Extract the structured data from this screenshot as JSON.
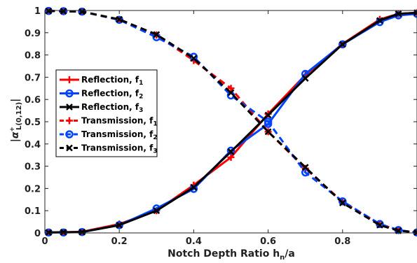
{
  "chart_data": {
    "type": "line",
    "xlabel": "Notch Depth Ratio h",
    "xlabel_sub": "n",
    "xlabel_tail": "/a",
    "ylabel_main": "|α",
    "ylabel_sup": "+",
    "ylabel_sub": "L(0,12)",
    "ylabel_close": "|",
    "xlim": [
      0,
      1
    ],
    "ylim": [
      0,
      1
    ],
    "xticks": [
      "0",
      "0.2",
      "0.4",
      "0.6",
      "0.8"
    ],
    "yticks": [
      "0",
      "0.1",
      "0.2",
      "0.3",
      "0.4",
      "0.5",
      "0.6",
      "0.7",
      "0.8",
      "0.9",
      "1"
    ],
    "legend_position": "center-left",
    "series": [
      {
        "name": "Reflection, f",
        "sub": "1",
        "color": "#ff0000",
        "marker": "plus",
        "dash": "solid",
        "x": [
          0.01,
          0.05,
          0.1,
          0.2,
          0.3,
          0.4,
          0.5,
          0.6,
          0.7,
          0.8,
          0.9,
          0.95,
          1.0
        ],
        "y": [
          0.002,
          0.003,
          0.005,
          0.04,
          0.1,
          0.215,
          0.34,
          0.535,
          0.71,
          0.85,
          0.96,
          0.985,
          0.99
        ]
      },
      {
        "name": "Reflection, f",
        "sub": "2",
        "color": "#0044ff",
        "marker": "circle",
        "dash": "solid",
        "x": [
          0.01,
          0.05,
          0.1,
          0.2,
          0.3,
          0.4,
          0.5,
          0.6,
          0.7,
          0.8,
          0.9,
          0.95,
          1.0
        ],
        "y": [
          0.002,
          0.002,
          0.004,
          0.035,
          0.11,
          0.198,
          0.37,
          0.49,
          0.715,
          0.848,
          0.948,
          0.978,
          0.985
        ]
      },
      {
        "name": "Reflection, f",
        "sub": "3",
        "color": "#000000",
        "marker": "x",
        "dash": "solid",
        "x": [
          0.01,
          0.05,
          0.1,
          0.2,
          0.3,
          0.4,
          0.5,
          0.6,
          0.7,
          0.8,
          0.9,
          0.95,
          1.0
        ],
        "y": [
          0.002,
          0.003,
          0.004,
          0.035,
          0.1,
          0.205,
          0.365,
          0.53,
          0.695,
          0.848,
          0.955,
          0.985,
          0.99
        ]
      },
      {
        "name": "Transmission, f",
        "sub": "1",
        "color": "#ff0000",
        "marker": "plus",
        "dash": "dashed",
        "x": [
          0.01,
          0.05,
          0.1,
          0.2,
          0.3,
          0.4,
          0.5,
          0.6,
          0.7,
          0.8,
          0.9,
          0.95,
          1.0
        ],
        "y": [
          0.998,
          0.997,
          0.995,
          0.958,
          0.89,
          0.775,
          0.65,
          0.455,
          0.29,
          0.14,
          0.04,
          0.012,
          0.002
        ]
      },
      {
        "name": "Transmission, f",
        "sub": "2",
        "color": "#0044ff",
        "marker": "circle",
        "dash": "dashed",
        "x": [
          0.01,
          0.05,
          0.1,
          0.2,
          0.3,
          0.4,
          0.5,
          0.6,
          0.7,
          0.8,
          0.9,
          0.95,
          1.0
        ],
        "y": [
          0.998,
          0.997,
          0.995,
          0.958,
          0.88,
          0.792,
          0.618,
          0.5,
          0.272,
          0.142,
          0.04,
          0.013,
          0.002
        ]
      },
      {
        "name": "Transmission, f",
        "sub": "3",
        "color": "#000000",
        "marker": "x",
        "dash": "dashed",
        "x": [
          0.01,
          0.05,
          0.1,
          0.2,
          0.3,
          0.4,
          0.5,
          0.6,
          0.7,
          0.8,
          0.9,
          0.95,
          1.0
        ],
        "y": [
          0.998,
          0.997,
          0.995,
          0.96,
          0.892,
          0.785,
          0.63,
          0.455,
          0.295,
          0.135,
          0.035,
          0.01,
          0.002
        ]
      }
    ]
  }
}
